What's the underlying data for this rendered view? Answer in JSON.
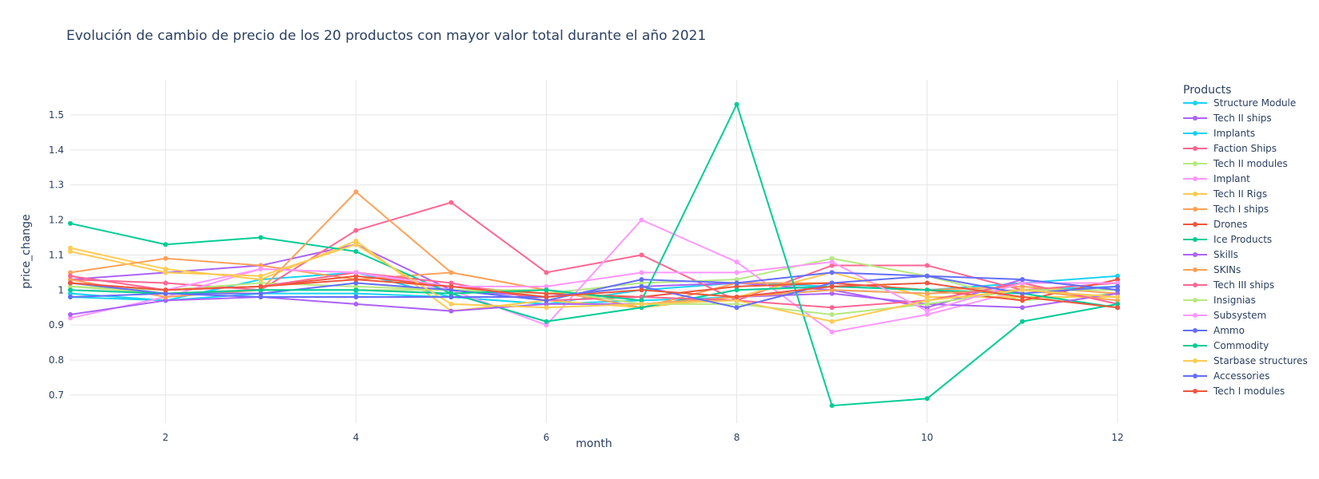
{
  "chart_data": {
    "type": "line",
    "title": "Evolución de cambio de precio de los 20 productos con mayor valor total durante el año 2021",
    "xlabel": "month",
    "ylabel": "price_change",
    "x": [
      1,
      2,
      3,
      4,
      5,
      6,
      7,
      8,
      9,
      10,
      11,
      12
    ],
    "xlim": [
      1,
      12
    ],
    "ylim": [
      0.62,
      1.6
    ],
    "xticks": [
      2,
      4,
      6,
      8,
      10,
      12
    ],
    "yticks": [
      0.7,
      0.8,
      0.9,
      1,
      1.1,
      1.2,
      1.3,
      1.4,
      1.5
    ],
    "xtick_labels": [
      "2",
      "4",
      "6",
      "8",
      "10",
      "12"
    ],
    "ytick_labels": [
      "0.7",
      "0.8",
      "0.9",
      "1",
      "1.1",
      "1.2",
      "1.3",
      "1.4",
      "1.5"
    ],
    "grid": true,
    "legend_title": "Products",
    "legend_position": "right",
    "series": [
      {
        "name": "Structure Module",
        "color": "#19d3f3",
        "values": [
          0.99,
          0.97,
          1.03,
          1.05,
          0.98,
          0.96,
          1.0,
          1.02,
          1.01,
          1.0,
          1.02,
          1.04
        ]
      },
      {
        "name": "Tech II ships",
        "color": "#ab63fa",
        "values": [
          1.03,
          1.05,
          1.07,
          1.13,
          1.0,
          0.98,
          1.01,
          1.02,
          1.0,
          0.95,
          1.03,
          1.0
        ]
      },
      {
        "name": "Implants",
        "color": "#19d3f3",
        "values": [
          0.98,
          0.97,
          0.99,
          0.99,
          0.98,
          0.96,
          0.97,
          0.98,
          1.0,
          0.99,
          1.0,
          1.01
        ]
      },
      {
        "name": "Faction Ships",
        "color": "#ff6692",
        "values": [
          1.03,
          1.02,
          1.0,
          1.17,
          1.25,
          1.05,
          1.1,
          0.97,
          1.07,
          1.07,
          1.0,
          1.02
        ]
      },
      {
        "name": "Tech II modules",
        "color": "#b6e880",
        "values": [
          1.01,
          1.0,
          1.02,
          1.01,
          1.0,
          0.99,
          1.02,
          1.03,
          1.09,
          1.04,
          0.97,
          0.99
        ]
      },
      {
        "name": "Implant",
        "color": "#ff97ff",
        "values": [
          0.92,
          0.98,
          1.06,
          1.05,
          1.0,
          0.9,
          1.2,
          1.08,
          0.88,
          0.93,
          1.0,
          0.98
        ]
      },
      {
        "name": "Tech II Rigs",
        "color": "#fecb52",
        "values": [
          1.12,
          1.06,
          1.03,
          1.14,
          0.94,
          0.97,
          0.95,
          0.98,
          1.05,
          0.98,
          0.98,
          0.98
        ]
      },
      {
        "name": "Tech I ships",
        "color": "#ffa15a",
        "values": [
          1.05,
          1.09,
          1.07,
          1.03,
          1.05,
          1.0,
          0.95,
          1.02,
          1.02,
          1.0,
          1.01,
          0.99
        ]
      },
      {
        "name": "Drones",
        "color": "#ef553b",
        "values": [
          1.02,
          1.0,
          1.01,
          1.04,
          1.01,
          0.99,
          0.98,
          1.01,
          1.02,
          1.0,
          0.97,
          1.03
        ]
      },
      {
        "name": "Ice Products",
        "color": "#00cc96",
        "values": [
          1.19,
          1.13,
          1.15,
          1.11,
          0.99,
          0.91,
          0.95,
          1.0,
          1.01,
          1.0,
          0.99,
          0.95
        ]
      },
      {
        "name": "Skills",
        "color": "#ab63fa",
        "values": [
          0.93,
          0.97,
          0.98,
          0.96,
          0.94,
          0.96,
          0.96,
          0.98,
          0.99,
          0.96,
          0.95,
          0.99
        ]
      },
      {
        "name": "SKINs",
        "color": "#ffa15a",
        "values": [
          1.03,
          0.98,
          1.0,
          1.28,
          1.05,
          1.0,
          0.96,
          0.98,
          1.0,
          0.99,
          1.0,
          0.97
        ]
      },
      {
        "name": "Tech III ships",
        "color": "#ff6692",
        "values": [
          1.04,
          1.0,
          1.01,
          1.05,
          1.02,
          0.97,
          0.98,
          0.97,
          0.95,
          0.97,
          1.02,
          0.96
        ]
      },
      {
        "name": "Insignias",
        "color": "#b6e880",
        "values": [
          1.01,
          0.99,
          1.0,
          1.0,
          1.0,
          1.0,
          0.96,
          0.96,
          0.93,
          0.96,
          1.0,
          1.0
        ]
      },
      {
        "name": "Subsystem",
        "color": "#ff97ff",
        "values": [
          1.02,
          1.0,
          1.06,
          1.05,
          1.01,
          1.01,
          1.05,
          1.05,
          1.08,
          0.94,
          1.02,
          1.02
        ]
      },
      {
        "name": "Ammo",
        "color": "#636efa",
        "values": [
          1.02,
          0.99,
          0.99,
          1.02,
          1.0,
          0.97,
          1.03,
          1.02,
          1.05,
          1.04,
          0.99,
          1.01
        ]
      },
      {
        "name": "Commodity",
        "color": "#00cc96",
        "values": [
          1.0,
          0.99,
          1.0,
          1.0,
          0.99,
          1.0,
          0.97,
          1.53,
          0.67,
          0.69,
          0.91,
          0.96
        ]
      },
      {
        "name": "Starbase structures",
        "color": "#fecb52",
        "values": [
          1.11,
          1.05,
          1.04,
          1.13,
          0.96,
          0.95,
          0.96,
          0.97,
          0.91,
          0.97,
          1.0,
          0.98
        ]
      },
      {
        "name": "Accessories",
        "color": "#636efa",
        "values": [
          0.98,
          0.99,
          0.98,
          0.98,
          0.98,
          0.98,
          1.01,
          0.95,
          1.02,
          1.04,
          1.03,
          1.0
        ]
      },
      {
        "name": "Tech I modules",
        "color": "#ef553b",
        "values": [
          1.02,
          1.0,
          1.01,
          1.03,
          1.01,
          0.98,
          1.0,
          0.98,
          1.01,
          1.02,
          0.98,
          0.95
        ]
      }
    ]
  }
}
